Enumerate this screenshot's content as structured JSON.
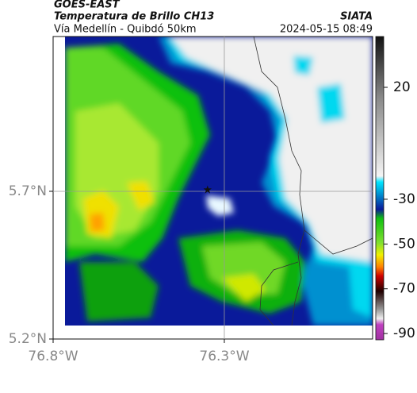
{
  "header": {
    "source": "GOES-EAST",
    "title": "Temperatura de Brillo CH13",
    "subtitle": "Vía Medellín - Quibdó 50km",
    "agency": "SIATA",
    "datetime": "2024-05-15 08:49"
  },
  "map": {
    "xlim": [
      -76.8,
      -75.867
    ],
    "ylim": [
      5.2,
      6.224
    ],
    "xticks": [
      {
        "value": -76.8,
        "label": "76.8°W"
      },
      {
        "value": -76.3,
        "label": "76.3°W"
      }
    ],
    "yticks": [
      {
        "value": 5.2,
        "label": "5.2°N"
      },
      {
        "value": 5.7,
        "label": "5.7°N"
      }
    ],
    "gridlines": [
      -76.3,
      5.7
    ],
    "marker": {
      "lon": -76.349,
      "lat": 5.705
    }
  },
  "colorbar": {
    "lim": [
      -92.8,
      42.7
    ],
    "ticks": [
      20,
      -30,
      -50,
      -70,
      -90
    ]
  }
}
